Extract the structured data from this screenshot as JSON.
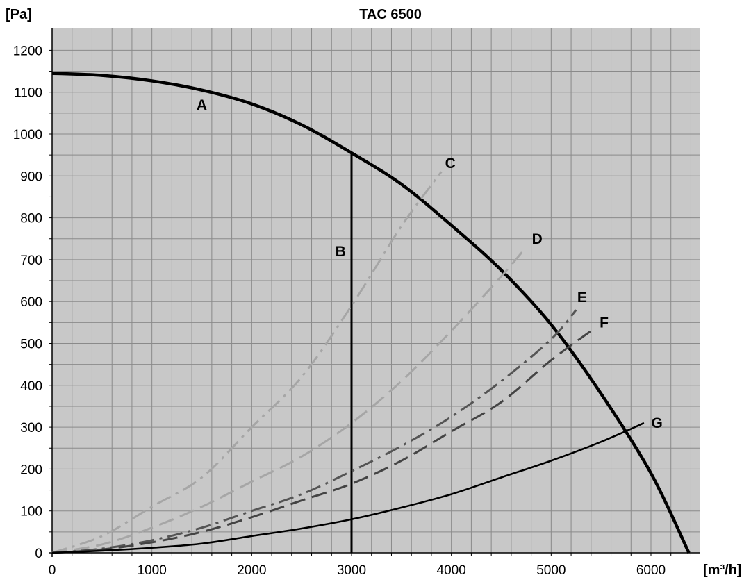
{
  "chart_data": {
    "type": "line",
    "title": "TAC 6500",
    "ylabel": "[Pa]",
    "xlabel": "[m³/h]",
    "xlim": [
      0,
      6500
    ],
    "ylim": [
      0,
      1250
    ],
    "x_ticks": [
      0,
      1000,
      2000,
      3000,
      4000,
      5000,
      6000
    ],
    "y_ticks": [
      0,
      100,
      200,
      300,
      400,
      500,
      600,
      700,
      800,
      900,
      1000,
      1100,
      1200
    ],
    "x_tick_labels": [
      "0",
      "1000",
      "2000",
      "3000",
      "4000",
      "5000",
      "6000"
    ],
    "y_tick_labels": [
      "0",
      "100",
      "200",
      "300",
      "400",
      "500",
      "600",
      "700",
      "800",
      "900",
      "1000",
      "1100",
      "1200"
    ],
    "grid": true,
    "series": [
      {
        "name": "A",
        "color": "#000000",
        "dash": "solid",
        "x": [
          0,
          500,
          1000,
          1500,
          2000,
          2500,
          3000,
          3500,
          4000,
          4500,
          5000,
          5500,
          6000,
          6380
        ],
        "y": [
          1145,
          1140,
          1127,
          1105,
          1072,
          1022,
          955,
          880,
          782,
          675,
          545,
          380,
          190,
          0
        ]
      },
      {
        "name": "B",
        "color": "#000000",
        "dash": "solid",
        "x": [
          3000,
          3000
        ],
        "y": [
          0,
          955
        ]
      },
      {
        "name": "C",
        "color": "#a6a6a6",
        "dash": "dashdot",
        "x": [
          0,
          500,
          1000,
          1500,
          2000,
          2500,
          3000,
          3500,
          3900
        ],
        "y": [
          0,
          40,
          110,
          180,
          300,
          420,
          590,
          780,
          910
        ]
      },
      {
        "name": "D",
        "color": "#a6a6a6",
        "dash": "dash",
        "x": [
          0,
          500,
          1000,
          1500,
          2000,
          2500,
          3000,
          3500,
          4000,
          4500,
          4750
        ],
        "y": [
          0,
          20,
          60,
          110,
          170,
          230,
          310,
          410,
          530,
          660,
          730
        ]
      },
      {
        "name": "E",
        "color": "#555555",
        "dash": "dashdot",
        "x": [
          0,
          500,
          1000,
          1500,
          2000,
          2500,
          3000,
          3500,
          4000,
          4500,
          5000,
          5250
        ],
        "y": [
          0,
          10,
          30,
          60,
          100,
          140,
          195,
          255,
          325,
          410,
          510,
          580
        ]
      },
      {
        "name": "F",
        "color": "#444444",
        "dash": "dash",
        "x": [
          0,
          500,
          1000,
          1500,
          2000,
          2500,
          3000,
          3500,
          4000,
          4500,
          5000,
          5400
        ],
        "y": [
          0,
          8,
          25,
          50,
          85,
          125,
          165,
          220,
          290,
          360,
          460,
          530
        ]
      },
      {
        "name": "G",
        "color": "#000000",
        "dash": "solid",
        "x": [
          0,
          500,
          1000,
          1500,
          2000,
          2500,
          3000,
          3500,
          4000,
          4500,
          5000,
          5500,
          5930
        ],
        "y": [
          0,
          5,
          12,
          22,
          40,
          58,
          80,
          108,
          140,
          180,
          220,
          265,
          310
        ]
      }
    ],
    "annotations": [
      {
        "text": "A",
        "x": 1500,
        "y": 1070
      },
      {
        "text": "B",
        "x": 2890,
        "y": 720
      },
      {
        "text": "C",
        "x": 3990,
        "y": 930
      },
      {
        "text": "D",
        "x": 4860,
        "y": 750
      },
      {
        "text": "E",
        "x": 5310,
        "y": 610
      },
      {
        "text": "F",
        "x": 5530,
        "y": 550
      },
      {
        "text": "G",
        "x": 6060,
        "y": 310
      }
    ]
  }
}
